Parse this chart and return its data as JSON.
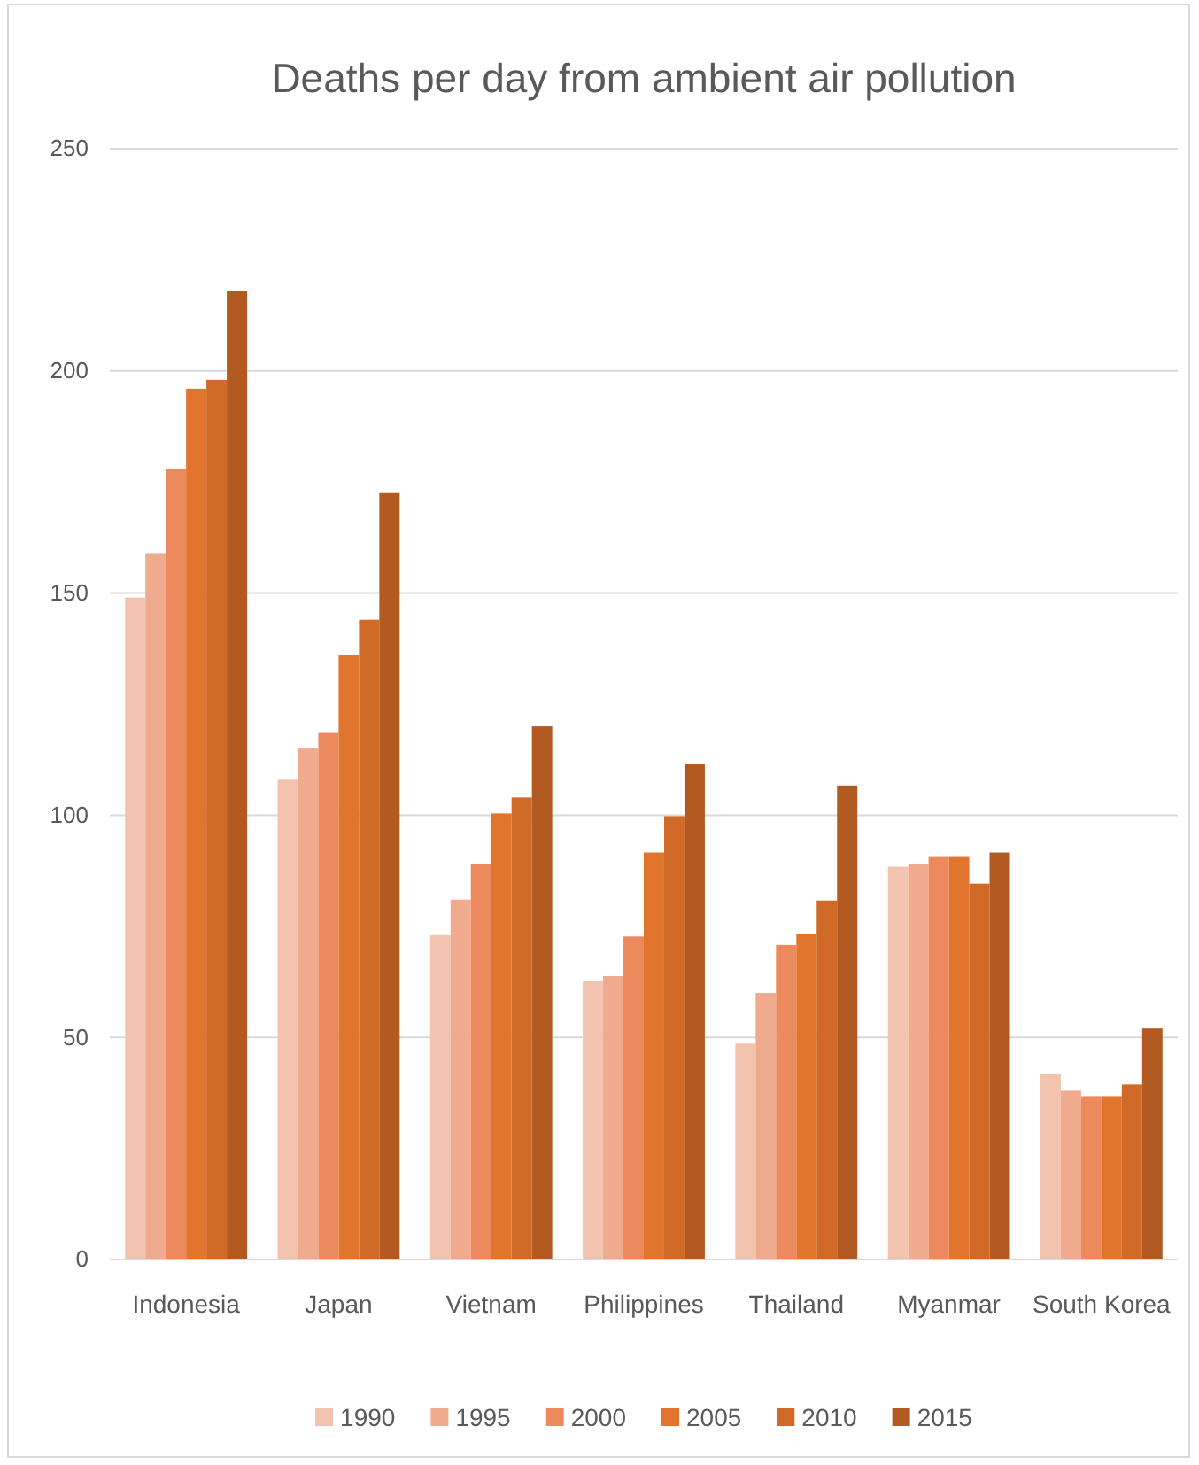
{
  "chart_data": {
    "type": "bar",
    "title": "Deaths per day from ambient air pollution",
    "categories": [
      "Indonesia",
      "Japan",
      "Vietnam",
      "Philippines",
      "Thailand",
      "Myanmar",
      "South Korea"
    ],
    "series": [
      {
        "name": "1990",
        "color": "#f2c4b0",
        "values": [
          149,
          108,
          73,
          62.6,
          48.6,
          88.4,
          41.9
        ]
      },
      {
        "name": "1995",
        "color": "#f0ab8e",
        "values": [
          159,
          115,
          81,
          63.8,
          60,
          89,
          38
        ]
      },
      {
        "name": "2000",
        "color": "#ec8a5e",
        "values": [
          178,
          118.5,
          89,
          72.7,
          70.8,
          90.8,
          36.8
        ]
      },
      {
        "name": "2005",
        "color": "#e2752e",
        "values": [
          196,
          136,
          100.4,
          91.6,
          73.2,
          90.8,
          36.8
        ]
      },
      {
        "name": "2010",
        "color": "#cf6a28",
        "values": [
          198,
          144,
          104,
          99.8,
          80.8,
          84.6,
          39.4
        ]
      },
      {
        "name": "2015",
        "color": "#b35a22",
        "values": [
          218,
          172.5,
          120,
          111.6,
          106.7,
          91.6,
          52
        ]
      }
    ],
    "ylim": [
      0,
      250
    ],
    "yticks": [
      0,
      50,
      100,
      150,
      200,
      250
    ],
    "grid": "y",
    "legend": "bottom"
  }
}
